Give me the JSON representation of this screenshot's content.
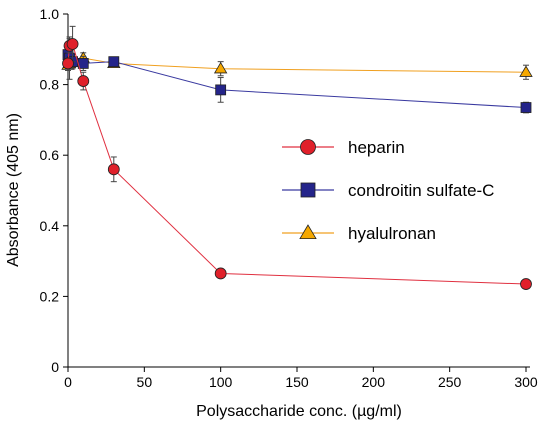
{
  "chart_data": {
    "type": "line",
    "title": "",
    "xlabel": "Polysaccharide conc. (µg/ml)",
    "ylabel": "Absorbance (405 nm)",
    "xlim": [
      0,
      300
    ],
    "ylim": [
      0,
      1.0
    ],
    "xticks": [
      0,
      50,
      100,
      150,
      200,
      250,
      300
    ],
    "yticks": [
      0,
      0.2,
      0.4,
      0.6,
      0.8,
      1.0
    ],
    "ytick_labels": [
      "0",
      "0.2",
      "0.4",
      "0.6",
      "0.8",
      "1.0"
    ],
    "grid": false,
    "legend_position": "center-right",
    "series": [
      {
        "name": "heparin",
        "marker": "circle",
        "line_color": "#e03040",
        "fill_color": "#e0202a",
        "points": [
          {
            "x": 0,
            "y": 0.86,
            "err": 0.015
          },
          {
            "x": 1,
            "y": 0.91,
            "err": 0.02
          },
          {
            "x": 3,
            "y": 0.915,
            "err": 0.05
          },
          {
            "x": 10,
            "y": 0.81,
            "err": 0.025
          },
          {
            "x": 30,
            "y": 0.56,
            "err": 0.035
          },
          {
            "x": 100,
            "y": 0.265,
            "err": 0.01
          },
          {
            "x": 300,
            "y": 0.235,
            "err": 0.012
          }
        ]
      },
      {
        "name": "condroitin sulfate-C",
        "marker": "square",
        "line_color": "#3a3aa0",
        "fill_color": "#24248a",
        "points": [
          {
            "x": 0,
            "y": 0.885,
            "err": 0.015
          },
          {
            "x": 1,
            "y": 0.875,
            "err": 0.06
          },
          {
            "x": 3,
            "y": 0.865,
            "err": 0.02
          },
          {
            "x": 10,
            "y": 0.86,
            "err": 0.02
          },
          {
            "x": 30,
            "y": 0.865,
            "err": 0.01
          },
          {
            "x": 100,
            "y": 0.785,
            "err": 0.035
          },
          {
            "x": 300,
            "y": 0.735,
            "err": 0.015
          }
        ]
      },
      {
        "name": "hyalulronan",
        "marker": "triangle",
        "line_color": "#f0a020",
        "fill_color": "#f5a800",
        "points": [
          {
            "x": 0,
            "y": 0.855,
            "err": 0.015
          },
          {
            "x": 1,
            "y": 0.86,
            "err": 0.015
          },
          {
            "x": 3,
            "y": 0.87,
            "err": 0.015
          },
          {
            "x": 10,
            "y": 0.875,
            "err": 0.015
          },
          {
            "x": 30,
            "y": 0.86,
            "err": 0.01
          },
          {
            "x": 100,
            "y": 0.845,
            "err": 0.02
          },
          {
            "x": 300,
            "y": 0.835,
            "err": 0.02
          }
        ]
      }
    ]
  }
}
